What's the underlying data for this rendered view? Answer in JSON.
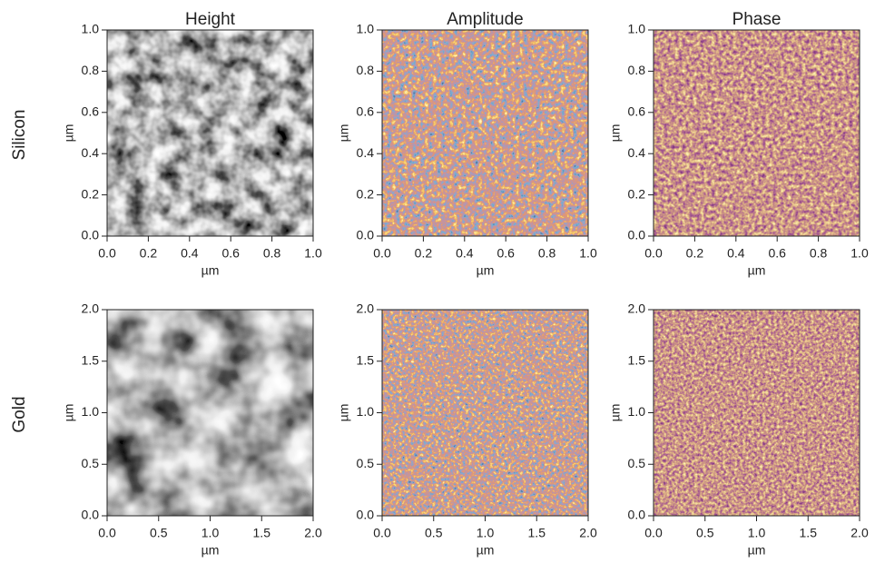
{
  "column_titles": [
    "Height",
    "Amplitude",
    "Phase"
  ],
  "row_labels": [
    "Silicon",
    "Gold"
  ],
  "chart_data": [
    {
      "type": "image",
      "colormap": "gray",
      "xlabel": "µm",
      "ylabel": "µm",
      "xlim": [
        0,
        1
      ],
      "ylim": [
        0,
        1
      ],
      "xticks": [
        {
          "value": 0,
          "label": "0.0"
        },
        {
          "value": 0.2,
          "label": "0.2"
        },
        {
          "value": 0.4,
          "label": "0.4"
        },
        {
          "value": 0.6,
          "label": "0.6"
        },
        {
          "value": 0.8,
          "label": "0.8"
        },
        {
          "value": 1,
          "label": "1.0"
        }
      ],
      "yticks": [
        {
          "value": 0,
          "label": "0.0"
        },
        {
          "value": 0.2,
          "label": "0.2"
        },
        {
          "value": 0.4,
          "label": "0.4"
        },
        {
          "value": 0.6,
          "label": "0.6"
        },
        {
          "value": 0.8,
          "label": "0.8"
        },
        {
          "value": 1,
          "label": "1.0"
        }
      ]
    },
    {
      "type": "image",
      "colormap": "amplitude",
      "xlabel": "µm",
      "ylabel": "µm",
      "xlim": [
        0,
        1
      ],
      "ylim": [
        0,
        1
      ],
      "xticks": [
        {
          "value": 0,
          "label": "0.0"
        },
        {
          "value": 0.2,
          "label": "0.2"
        },
        {
          "value": 0.4,
          "label": "0.4"
        },
        {
          "value": 0.6,
          "label": "0.6"
        },
        {
          "value": 0.8,
          "label": "0.8"
        },
        {
          "value": 1,
          "label": "1.0"
        }
      ],
      "yticks": [
        {
          "value": 0,
          "label": "0.0"
        },
        {
          "value": 0.2,
          "label": "0.2"
        },
        {
          "value": 0.4,
          "label": "0.4"
        },
        {
          "value": 0.6,
          "label": "0.6"
        },
        {
          "value": 0.8,
          "label": "0.8"
        },
        {
          "value": 1,
          "label": "1.0"
        }
      ]
    },
    {
      "type": "image",
      "colormap": "phase",
      "xlabel": "µm",
      "ylabel": "µm",
      "xlim": [
        0,
        1
      ],
      "ylim": [
        0,
        1
      ],
      "xticks": [
        {
          "value": 0,
          "label": "0.0"
        },
        {
          "value": 0.2,
          "label": "0.2"
        },
        {
          "value": 0.4,
          "label": "0.4"
        },
        {
          "value": 0.6,
          "label": "0.6"
        },
        {
          "value": 0.8,
          "label": "0.8"
        },
        {
          "value": 1,
          "label": "1.0"
        }
      ],
      "yticks": [
        {
          "value": 0,
          "label": "0.0"
        },
        {
          "value": 0.2,
          "label": "0.2"
        },
        {
          "value": 0.4,
          "label": "0.4"
        },
        {
          "value": 0.6,
          "label": "0.6"
        },
        {
          "value": 0.8,
          "label": "0.8"
        },
        {
          "value": 1,
          "label": "1.0"
        }
      ]
    },
    {
      "type": "image",
      "colormap": "gray",
      "xlabel": "µm",
      "ylabel": "µm",
      "xlim": [
        0,
        2
      ],
      "ylim": [
        0,
        2
      ],
      "xticks": [
        {
          "value": 0,
          "label": "0.0"
        },
        {
          "value": 0.5,
          "label": "0.5"
        },
        {
          "value": 1,
          "label": "1.0"
        },
        {
          "value": 1.5,
          "label": "1.5"
        },
        {
          "value": 2,
          "label": "2.0"
        }
      ],
      "yticks": [
        {
          "value": 0,
          "label": "0.0"
        },
        {
          "value": 0.5,
          "label": "0.5"
        },
        {
          "value": 1,
          "label": "1.0"
        },
        {
          "value": 1.5,
          "label": "1.5"
        },
        {
          "value": 2,
          "label": "2.0"
        }
      ]
    },
    {
      "type": "image",
      "colormap": "amplitude",
      "xlabel": "µm",
      "ylabel": "µm",
      "xlim": [
        0,
        2
      ],
      "ylim": [
        0,
        2
      ],
      "xticks": [
        {
          "value": 0,
          "label": "0.0"
        },
        {
          "value": 0.5,
          "label": "0.5"
        },
        {
          "value": 1,
          "label": "1.0"
        },
        {
          "value": 1.5,
          "label": "1.5"
        },
        {
          "value": 2,
          "label": "2.0"
        }
      ],
      "yticks": [
        {
          "value": 0,
          "label": "0.0"
        },
        {
          "value": 0.5,
          "label": "0.5"
        },
        {
          "value": 1,
          "label": "1.0"
        },
        {
          "value": 1.5,
          "label": "1.5"
        },
        {
          "value": 2,
          "label": "2.0"
        }
      ]
    },
    {
      "type": "image",
      "colormap": "phase",
      "xlabel": "µm",
      "ylabel": "µm",
      "xlim": [
        0,
        2
      ],
      "ylim": [
        0,
        2
      ],
      "xticks": [
        {
          "value": 0,
          "label": "0.0"
        },
        {
          "value": 0.5,
          "label": "0.5"
        },
        {
          "value": 1,
          "label": "1.0"
        },
        {
          "value": 1.5,
          "label": "1.5"
        },
        {
          "value": 2,
          "label": "2.0"
        }
      ],
      "yticks": [
        {
          "value": 0,
          "label": "0.0"
        },
        {
          "value": 0.5,
          "label": "0.5"
        },
        {
          "value": 1,
          "label": "1.0"
        },
        {
          "value": 1.5,
          "label": "1.5"
        },
        {
          "value": 2,
          "label": "2.0"
        }
      ]
    }
  ]
}
